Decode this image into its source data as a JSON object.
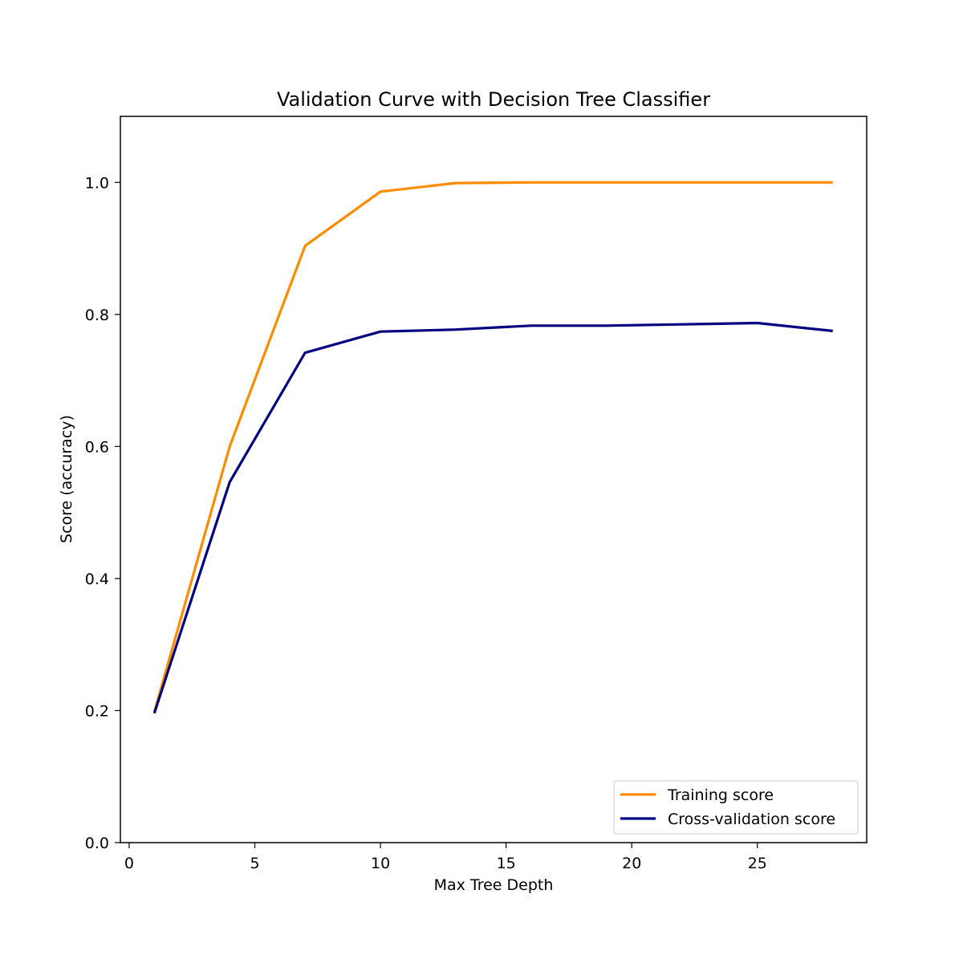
{
  "chart_data": {
    "type": "line",
    "title": "Validation Curve with Decision Tree Classifier",
    "xlabel": "Max Tree Depth",
    "ylabel": "Score (accuracy)",
    "xlim": [
      -0.35,
      29.35
    ],
    "ylim": [
      0.0,
      1.1
    ],
    "xticks": [
      0,
      5,
      10,
      15,
      20,
      25
    ],
    "yticks": [
      0.0,
      0.2,
      0.4,
      0.6,
      0.8,
      1.0
    ],
    "xtick_labels": [
      "0",
      "5",
      "10",
      "15",
      "20",
      "25"
    ],
    "ytick_labels": [
      "0.0",
      "0.2",
      "0.4",
      "0.6",
      "0.8",
      "1.0"
    ],
    "grid": false,
    "legend_position": "bottom-right",
    "x": [
      1,
      4,
      7,
      10,
      13,
      16,
      19,
      22,
      25,
      28
    ],
    "series": [
      {
        "name": "Training score",
        "color": "#ff8c00",
        "values": [
          0.198,
          0.6,
          0.904,
          0.986,
          0.999,
          1.0,
          1.0,
          1.0,
          1.0,
          1.0
        ]
      },
      {
        "name": "Cross-validation score",
        "color": "#000080",
        "values": [
          0.196,
          0.546,
          0.742,
          0.774,
          0.777,
          0.783,
          0.783,
          0.785,
          0.787,
          0.775
        ]
      }
    ]
  }
}
